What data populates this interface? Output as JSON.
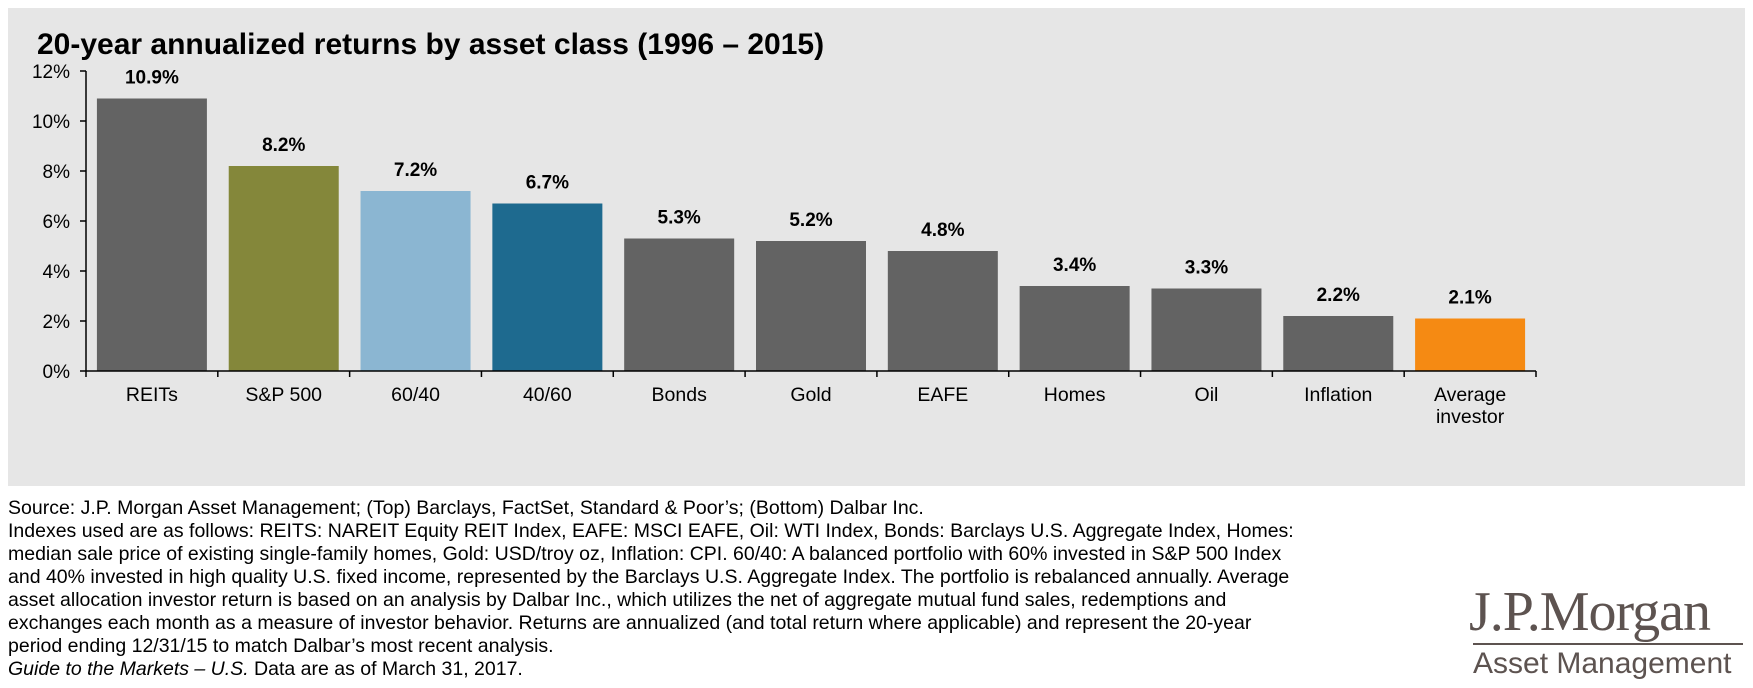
{
  "title": "20-year annualized returns by asset class (1996 – 2015)",
  "chart_data": {
    "type": "bar",
    "title": "20-year annualized returns by asset class (1996 – 2015)",
    "xlabel": "",
    "ylabel": "",
    "ylim": [
      0,
      12
    ],
    "y_ticks": [
      "0%",
      "2%",
      "4%",
      "6%",
      "8%",
      "10%",
      "12%"
    ],
    "categories": [
      "REITs",
      "S&P 500",
      "60/40",
      "40/60",
      "Bonds",
      "Gold",
      "EAFE",
      "Homes",
      "Oil",
      "Inflation",
      "Average investor"
    ],
    "values": [
      10.9,
      8.2,
      7.2,
      6.7,
      5.3,
      5.2,
      4.8,
      3.4,
      3.3,
      2.2,
      2.1
    ],
    "data_labels": [
      "10.9%",
      "8.2%",
      "7.2%",
      "6.7%",
      "5.3%",
      "5.2%",
      "4.8%",
      "3.4%",
      "3.3%",
      "2.2%",
      "2.1%"
    ],
    "colors": [
      "#636363",
      "#84873a",
      "#8bb6d2",
      "#1e6a8f",
      "#636363",
      "#636363",
      "#636363",
      "#636363",
      "#636363",
      "#636363",
      "#f58a13"
    ],
    "grid": false,
    "legend": "none"
  },
  "footnotes": {
    "source": "Source: J.P. Morgan Asset Management; (Top) Barclays, FactSet, Standard & Poor’s; (Bottom) Dalbar Inc.",
    "lines": [
      "Indexes used are as follows: REITS: NAREIT Equity REIT Index, EAFE: MSCI EAFE, Oil: WTI Index, Bonds: Barclays U.S. Aggregate Index, Homes:",
      "median sale price of existing single-family homes, Gold: USD/troy oz, Inflation: CPI. 60/40: A balanced portfolio with 60% invested in S&P 500 Index",
      "and 40% invested in high quality U.S. fixed income, represented by the Barclays U.S. Aggregate Index. The portfolio is rebalanced annually. Average",
      "asset allocation investor return is based on an analysis by Dalbar Inc., which utilizes the net of aggregate mutual fund sales, redemptions and",
      "exchanges each month as a measure of investor behavior. Returns are annualized (and total return where applicable) and represent the 20-year",
      "period ending 12/31/15 to match Dalbar’s most recent analysis."
    ],
    "guide_italic": "Guide to the Markets – U.S.",
    "guide_rest": " Data are as of March 31, 2017."
  },
  "logo": {
    "name": "J.P.Morgan",
    "subtitle": "Asset Management",
    "color": "#5d5350"
  }
}
